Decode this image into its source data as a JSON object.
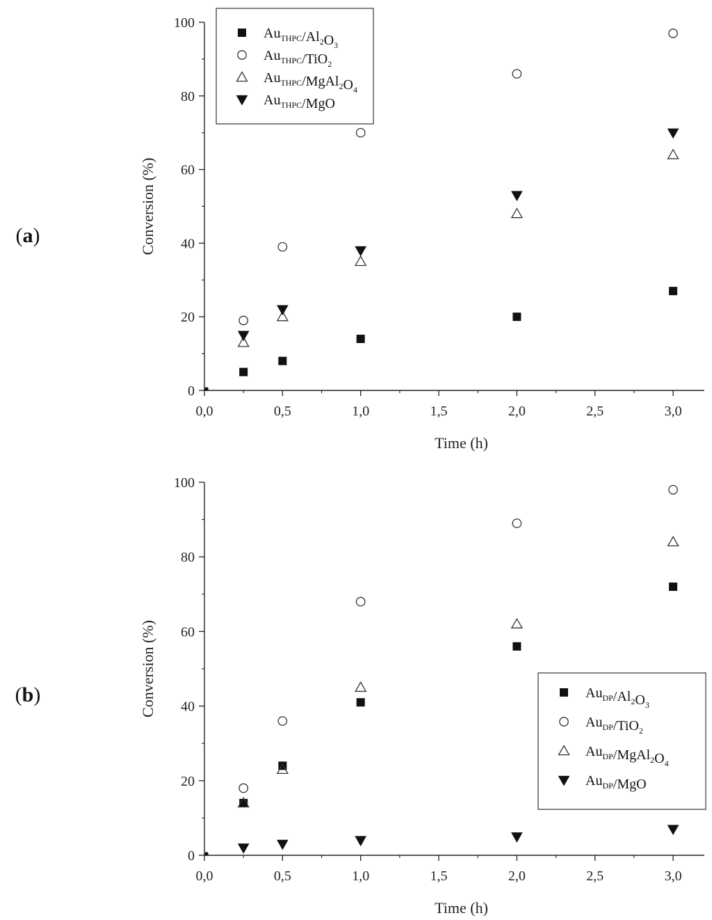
{
  "chart_data": [
    {
      "type": "scatter",
      "panel_label": "a",
      "xlabel": "Time (h)",
      "ylabel": "Conversion (%)",
      "xlim": [
        0,
        3.2
      ],
      "ylim": [
        0,
        100
      ],
      "xticks": [
        "0,0",
        "0,5",
        "1,0",
        "1,5",
        "2,0",
        "2,5",
        "3,0"
      ],
      "yticks": [
        "0",
        "20",
        "40",
        "60",
        "80",
        "100"
      ],
      "legend_position": "top-left",
      "series": [
        {
          "name": "Au",
          "sub": "THPC",
          "support": "/Al",
          "s1": "2",
          "mid": "O",
          "s2": "3",
          "marker": "square-filled",
          "x": [
            0,
            0.25,
            0.5,
            1.0,
            2.0,
            3.0
          ],
          "y": [
            0,
            5,
            8,
            14,
            20,
            27
          ]
        },
        {
          "name": "Au",
          "sub": "THPC",
          "support": "/TiO",
          "s1": "2",
          "mid": "",
          "s2": "",
          "marker": "circle-open",
          "x": [
            0,
            0.25,
            0.5,
            1.0,
            2.0,
            3.0
          ],
          "y": [
            0,
            19,
            39,
            70,
            86,
            97
          ]
        },
        {
          "name": "Au",
          "sub": "THPC",
          "support": "/MgAl",
          "s1": "2",
          "mid": "O",
          "s2": "4",
          "marker": "triangle-up-open",
          "x": [
            0,
            0.25,
            0.5,
            1.0,
            2.0,
            3.0
          ],
          "y": [
            0,
            13,
            20,
            35,
            48,
            64
          ]
        },
        {
          "name": "Au",
          "sub": "THPC",
          "support": "/MgO",
          "s1": "",
          "mid": "",
          "s2": "",
          "marker": "triangle-down-filled",
          "x": [
            0,
            0.25,
            0.5,
            1.0,
            2.0,
            3.0
          ],
          "y": [
            0,
            15,
            22,
            38,
            53,
            70
          ]
        }
      ]
    },
    {
      "type": "scatter",
      "panel_label": "b",
      "xlabel": "Time (h)",
      "ylabel": "Conversion (%)",
      "xlim": [
        0,
        3.2
      ],
      "ylim": [
        0,
        100
      ],
      "xticks": [
        "0,0",
        "0,5",
        "1,0",
        "1,5",
        "2,0",
        "2,5",
        "3,0"
      ],
      "yticks": [
        "0",
        "20",
        "40",
        "60",
        "80",
        "100"
      ],
      "legend_position": "center-right",
      "series": [
        {
          "name": "Au",
          "sub": "DP",
          "support": "/Al",
          "s1": "2",
          "mid": "O",
          "s2": "3",
          "marker": "square-filled",
          "x": [
            0,
            0.25,
            0.5,
            1.0,
            2.0,
            3.0
          ],
          "y": [
            0,
            14,
            24,
            41,
            56,
            72
          ]
        },
        {
          "name": "Au",
          "sub": "DP",
          "support": "/TiO",
          "s1": "2",
          "mid": "",
          "s2": "",
          "marker": "circle-open",
          "x": [
            0,
            0.25,
            0.5,
            1.0,
            2.0,
            3.0
          ],
          "y": [
            0,
            18,
            36,
            68,
            89,
            98
          ]
        },
        {
          "name": "Au",
          "sub": "DP",
          "support": "/MgAl",
          "s1": "2",
          "mid": "O",
          "s2": "4",
          "marker": "triangle-up-open",
          "x": [
            0,
            0.25,
            0.5,
            1.0,
            2.0,
            3.0
          ],
          "y": [
            0,
            14,
            23,
            45,
            62,
            84
          ]
        },
        {
          "name": "Au",
          "sub": "DP",
          "support": "/MgO",
          "s1": "",
          "mid": "",
          "s2": "",
          "marker": "triangle-down-filled",
          "x": [
            0,
            0.25,
            0.5,
            1.0,
            2.0,
            3.0
          ],
          "y": [
            0,
            2,
            3,
            4,
            5,
            7
          ]
        }
      ]
    }
  ]
}
